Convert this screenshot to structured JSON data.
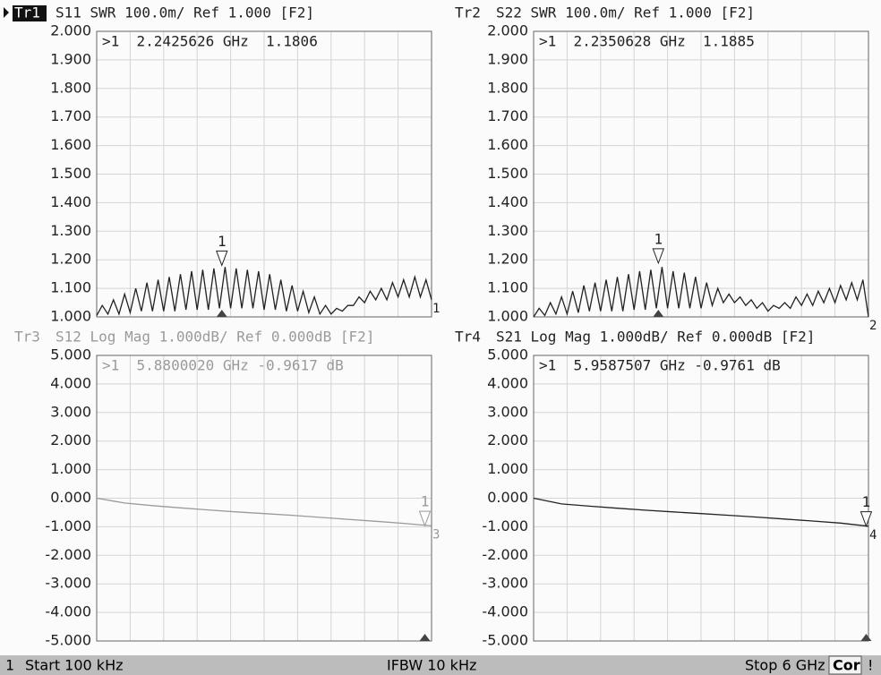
{
  "status_bar": {
    "channel": "1",
    "start": "Start 100 kHz",
    "ifbw": "IFBW 10 kHz",
    "stop": "Stop 6 GHz",
    "correction": "Cor",
    "alert": "!"
  },
  "chart_data": [
    {
      "type": "line",
      "trace": "Tr1",
      "active": true,
      "title": "S11 SWR 100.0m/ Ref 1.000 [F2]",
      "annotation": ">1  2.2425626 GHz  1.1806",
      "color": "#222222",
      "xlim": [
        0.0001,
        6
      ],
      "ylim": [
        1,
        2
      ],
      "yticks": [
        {
          "value": 1,
          "label": "1.000"
        },
        {
          "value": 1.1,
          "label": "1.100"
        },
        {
          "value": 1.2,
          "label": "1.200"
        },
        {
          "value": 1.3,
          "label": "1.300"
        },
        {
          "value": 1.4,
          "label": "1.400"
        },
        {
          "value": 1.5,
          "label": "1.500"
        },
        {
          "value": 1.6,
          "label": "1.600"
        },
        {
          "value": 1.7,
          "label": "1.700"
        },
        {
          "value": 1.8,
          "label": "1.800"
        },
        {
          "value": 1.9,
          "label": "1.900"
        },
        {
          "value": 2,
          "label": "2.000"
        }
      ],
      "x": [
        0.0001,
        0.1,
        0.2,
        0.3,
        0.4,
        0.5,
        0.6,
        0.7,
        0.8,
        0.9,
        1.0,
        1.1,
        1.2,
        1.3,
        1.4,
        1.5,
        1.6,
        1.7,
        1.8,
        1.9,
        2.0,
        2.1,
        2.2,
        2.3,
        2.4,
        2.5,
        2.6,
        2.7,
        2.8,
        2.9,
        3.0,
        3.1,
        3.2,
        3.3,
        3.4,
        3.5,
        3.6,
        3.7,
        3.8,
        3.9,
        4.0,
        4.1,
        4.2,
        4.3,
        4.4,
        4.5,
        4.6,
        4.7,
        4.8,
        4.9,
        5.0,
        5.1,
        5.2,
        5.3,
        5.4,
        5.5,
        5.6,
        5.7,
        5.8,
        5.9,
        6.0
      ],
      "values": [
        1.005,
        1.04,
        1.01,
        1.06,
        1.01,
        1.08,
        1.015,
        1.1,
        1.02,
        1.12,
        1.02,
        1.13,
        1.02,
        1.14,
        1.02,
        1.15,
        1.025,
        1.16,
        1.025,
        1.165,
        1.025,
        1.17,
        1.03,
        1.175,
        1.03,
        1.17,
        1.03,
        1.165,
        1.03,
        1.16,
        1.025,
        1.15,
        1.025,
        1.13,
        1.02,
        1.11,
        1.02,
        1.09,
        1.015,
        1.07,
        1.01,
        1.04,
        1.01,
        1.03,
        1.02,
        1.04,
        1.04,
        1.07,
        1.05,
        1.09,
        1.06,
        1.1,
        1.06,
        1.12,
        1.07,
        1.13,
        1.07,
        1.14,
        1.07,
        1.13,
        1.06
      ],
      "markers": [
        {
          "label": "1",
          "x": 2.2425626,
          "y": 1.1806
        }
      ],
      "end_label": "1"
    },
    {
      "type": "line",
      "trace": "Tr2",
      "title": "S22 SWR 100.0m/ Ref 1.000 [F2]",
      "annotation": ">1  2.2350628 GHz  1.1885",
      "color": "#222222",
      "xlim": [
        0.0001,
        6
      ],
      "ylim": [
        1,
        2
      ],
      "yticks": [
        {
          "value": 1,
          "label": "1.000"
        },
        {
          "value": 1.1,
          "label": "1.100"
        },
        {
          "value": 1.2,
          "label": "1.200"
        },
        {
          "value": 1.3,
          "label": "1.300"
        },
        {
          "value": 1.4,
          "label": "1.400"
        },
        {
          "value": 1.5,
          "label": "1.500"
        },
        {
          "value": 1.6,
          "label": "1.600"
        },
        {
          "value": 1.7,
          "label": "1.700"
        },
        {
          "value": 1.8,
          "label": "1.800"
        },
        {
          "value": 1.9,
          "label": "1.900"
        },
        {
          "value": 2,
          "label": "2.000"
        }
      ],
      "x": [
        0.0001,
        0.1,
        0.2,
        0.3,
        0.4,
        0.5,
        0.6,
        0.7,
        0.8,
        0.9,
        1.0,
        1.1,
        1.2,
        1.3,
        1.4,
        1.5,
        1.6,
        1.7,
        1.8,
        1.9,
        2.0,
        2.1,
        2.2,
        2.3,
        2.4,
        2.5,
        2.6,
        2.7,
        2.8,
        2.9,
        3.0,
        3.1,
        3.2,
        3.3,
        3.4,
        3.5,
        3.6,
        3.7,
        3.8,
        3.9,
        4.0,
        4.1,
        4.2,
        4.3,
        4.4,
        4.5,
        4.6,
        4.7,
        4.8,
        4.9,
        5.0,
        5.1,
        5.2,
        5.3,
        5.4,
        5.5,
        5.6,
        5.7,
        5.8,
        5.9,
        6.0
      ],
      "values": [
        1.0,
        1.03,
        1.005,
        1.05,
        1.01,
        1.07,
        1.01,
        1.09,
        1.015,
        1.11,
        1.02,
        1.12,
        1.02,
        1.13,
        1.02,
        1.14,
        1.02,
        1.15,
        1.025,
        1.16,
        1.025,
        1.165,
        1.03,
        1.175,
        1.03,
        1.16,
        1.03,
        1.155,
        1.03,
        1.14,
        1.03,
        1.12,
        1.04,
        1.1,
        1.05,
        1.08,
        1.05,
        1.07,
        1.04,
        1.06,
        1.03,
        1.05,
        1.02,
        1.04,
        1.03,
        1.05,
        1.03,
        1.07,
        1.04,
        1.08,
        1.04,
        1.09,
        1.05,
        1.1,
        1.05,
        1.11,
        1.06,
        1.12,
        1.06,
        1.13,
        1.0
      ],
      "markers": [
        {
          "label": "1",
          "x": 2.2350628,
          "y": 1.1885
        }
      ],
      "end_label": "2"
    },
    {
      "type": "line",
      "trace": "Tr3",
      "title": "S12 Log Mag 1.000dB/ Ref 0.000dB [F2]",
      "annotation": ">1  5.8800020 GHz -0.9617 dB",
      "color": "#9a9a9a",
      "xlim": [
        0.0001,
        6
      ],
      "ylim": [
        -5,
        5
      ],
      "yticks": [
        {
          "value": -5,
          "label": "-5.000"
        },
        {
          "value": -4,
          "label": "-4.000"
        },
        {
          "value": -3,
          "label": "-3.000"
        },
        {
          "value": -2,
          "label": "-2.000"
        },
        {
          "value": -1,
          "label": "-1.000"
        },
        {
          "value": 0,
          "label": "0.000"
        },
        {
          "value": 1,
          "label": "1.000"
        },
        {
          "value": 2,
          "label": "2.000"
        },
        {
          "value": 3,
          "label": "3.000"
        },
        {
          "value": 4,
          "label": "4.000"
        },
        {
          "value": 5,
          "label": "5.000"
        }
      ],
      "x": [
        0.0001,
        0.5,
        1.0,
        1.5,
        2.0,
        2.5,
        3.0,
        3.5,
        4.0,
        4.5,
        5.0,
        5.5,
        6.0
      ],
      "values": [
        0,
        -0.17,
        -0.26,
        -0.34,
        -0.41,
        -0.48,
        -0.54,
        -0.6,
        -0.67,
        -0.74,
        -0.81,
        -0.88,
        -0.97
      ],
      "markers": [
        {
          "label": "1",
          "x": 5.880002,
          "y": -0.9617
        }
      ],
      "end_label": "3"
    },
    {
      "type": "line",
      "trace": "Tr4",
      "title": "S21 Log Mag 1.000dB/ Ref 0.000dB [F2]",
      "annotation": ">1  5.9587507 GHz -0.9761 dB",
      "color": "#222222",
      "xlim": [
        0.0001,
        6
      ],
      "ylim": [
        -5,
        5
      ],
      "yticks": [
        {
          "value": -5,
          "label": "-5.000"
        },
        {
          "value": -4,
          "label": "-4.000"
        },
        {
          "value": -3,
          "label": "-3.000"
        },
        {
          "value": -2,
          "label": "-2.000"
        },
        {
          "value": -1,
          "label": "-1.000"
        },
        {
          "value": 0,
          "label": "0.000"
        },
        {
          "value": 1,
          "label": "1.000"
        },
        {
          "value": 2,
          "label": "2.000"
        },
        {
          "value": 3,
          "label": "3.000"
        },
        {
          "value": 4,
          "label": "4.000"
        },
        {
          "value": 5,
          "label": "5.000"
        }
      ],
      "x": [
        0.0001,
        0.5,
        1.0,
        1.5,
        2.0,
        2.5,
        3.0,
        3.5,
        4.0,
        4.5,
        5.0,
        5.5,
        6.0
      ],
      "values": [
        0,
        -0.2,
        -0.28,
        -0.35,
        -0.42,
        -0.48,
        -0.54,
        -0.6,
        -0.66,
        -0.73,
        -0.8,
        -0.87,
        -0.98
      ],
      "markers": [
        {
          "label": "1",
          "x": 5.9587507,
          "y": -0.9761
        }
      ],
      "end_label": "4"
    }
  ]
}
